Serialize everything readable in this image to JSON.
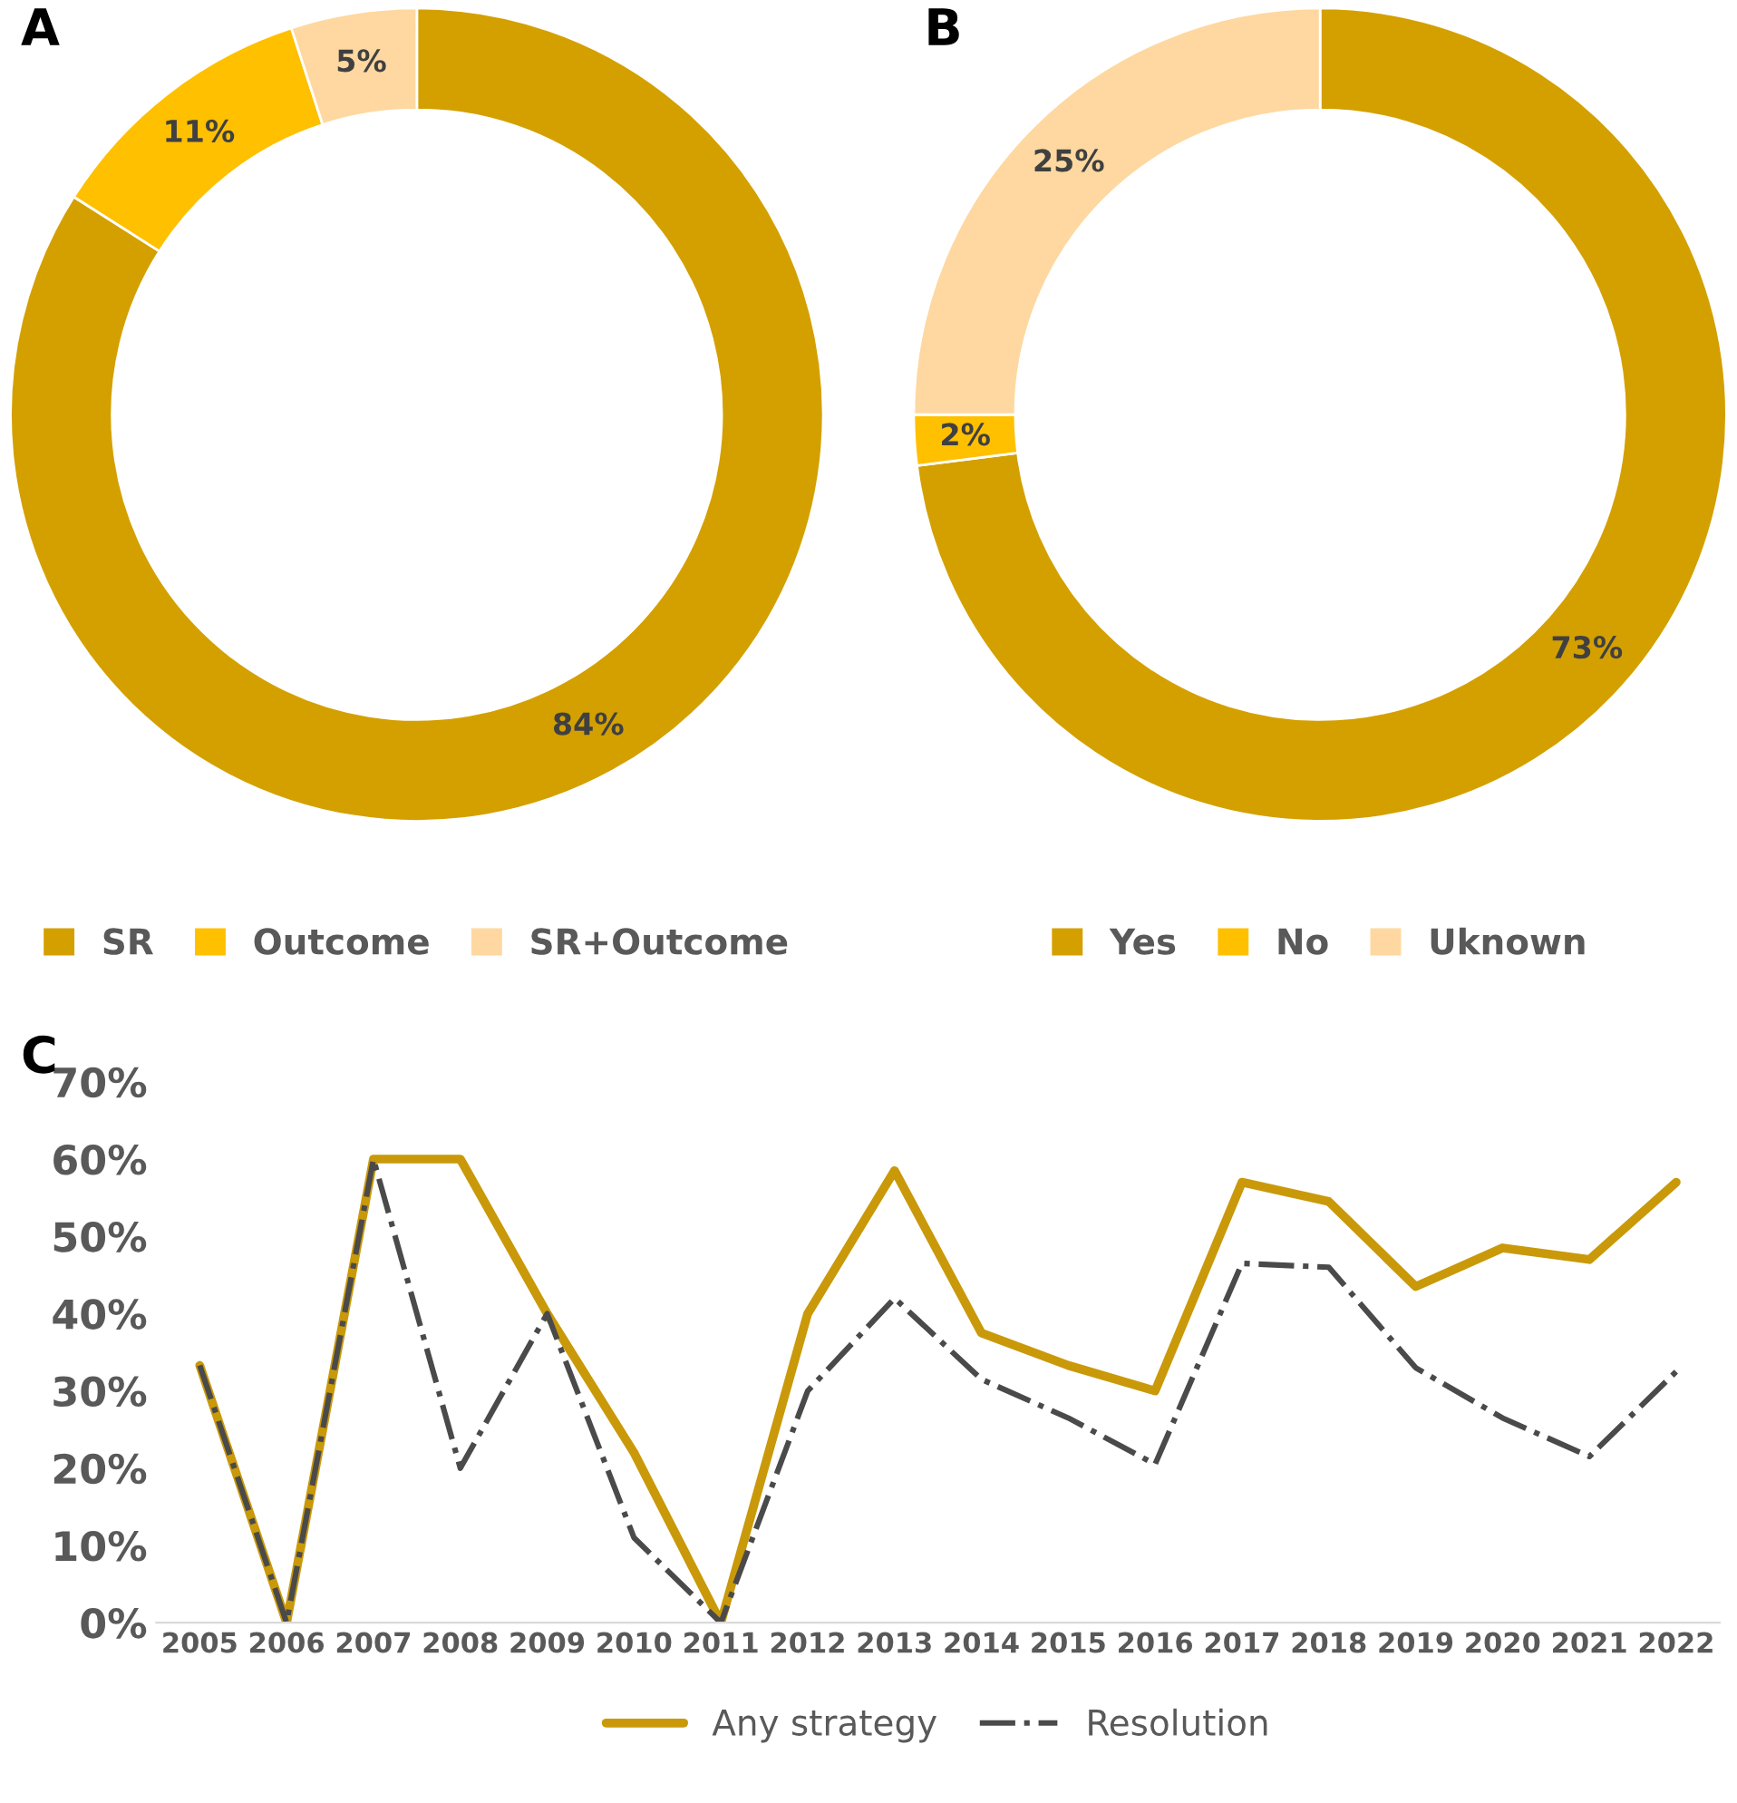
{
  "chart_data": [
    {
      "type": "donut",
      "title": "A",
      "categories": [
        "SR",
        "Outcome",
        "SR+Outcome"
      ],
      "values": [
        84,
        11,
        5
      ],
      "value_labels": [
        "84%",
        "11%",
        "5%"
      ],
      "colors": [
        "#d4a000",
        "#ffc000",
        "#fed8a0"
      ],
      "legend": "bottom"
    },
    {
      "type": "donut",
      "title": "B",
      "categories": [
        "Yes",
        "No",
        "Uknown"
      ],
      "values": [
        73,
        2,
        25
      ],
      "value_labels": [
        "73%",
        "2%",
        "25%"
      ],
      "colors": [
        "#d4a000",
        "#ffc000",
        "#fed8a0"
      ],
      "legend": "bottom"
    },
    {
      "type": "line",
      "title": "C",
      "categories": [
        "2005",
        "2006",
        "2007",
        "2008",
        "2009",
        "2010",
        "2011",
        "2012",
        "2013",
        "2014",
        "2015",
        "2016",
        "2017",
        "2018",
        "2019",
        "2020",
        "2021",
        "2022"
      ],
      "series": [
        {
          "name": "Any strategy",
          "color": "#c9990a",
          "line_style": "solid",
          "values": [
            33.3,
            0,
            60,
            60,
            40,
            22,
            0,
            40,
            58.5,
            37.5,
            33.3,
            30,
            57,
            54.5,
            43.5,
            48.5,
            47,
            57
          ]
        },
        {
          "name": "Resolution",
          "color": "#4a4a4a",
          "line_style": "dashdot",
          "values": [
            33.3,
            0,
            60,
            20,
            40,
            11,
            0,
            30,
            42,
            31.5,
            26.5,
            20.5,
            46.5,
            46,
            33,
            26.5,
            21.5,
            32.5
          ]
        }
      ],
      "ylim": [
        0,
        70
      ],
      "yticks": [
        {
          "value": 0,
          "label": "0%"
        },
        {
          "value": 10,
          "label": "10%"
        },
        {
          "value": 20,
          "label": "20%"
        },
        {
          "value": 30,
          "label": "30%"
        },
        {
          "value": 40,
          "label": "40%"
        },
        {
          "value": 50,
          "label": "50%"
        },
        {
          "value": 60,
          "label": "60%"
        },
        {
          "value": 70,
          "label": "70%"
        }
      ],
      "grid": false,
      "legend": "bottom"
    }
  ]
}
